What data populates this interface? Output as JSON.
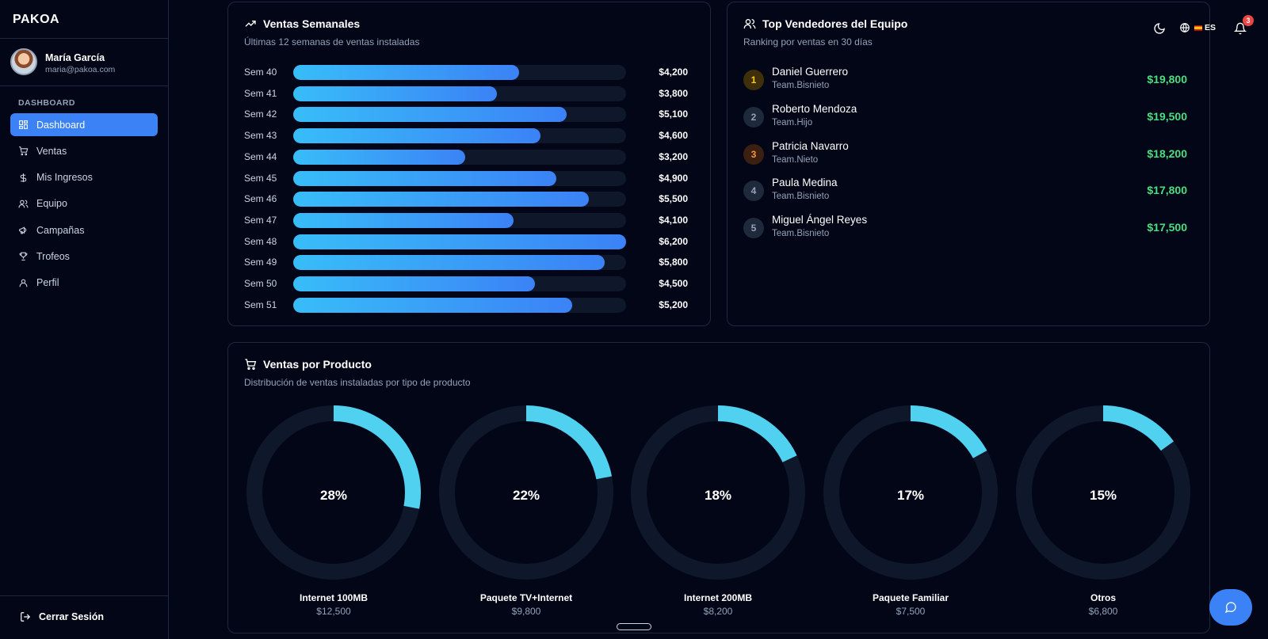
{
  "app": {
    "logo": "PAKOA"
  },
  "user": {
    "name": "María García",
    "email": "maria@pakoa.com"
  },
  "sidebar": {
    "section": "DASHBOARD",
    "items": [
      {
        "label": "Dashboard",
        "icon": "grid-icon",
        "active": true
      },
      {
        "label": "Ventas",
        "icon": "cart-icon"
      },
      {
        "label": "Mis Ingresos",
        "icon": "dollar-icon"
      },
      {
        "label": "Equipo",
        "icon": "users-icon"
      },
      {
        "label": "Campañas",
        "icon": "megaphone-icon"
      },
      {
        "label": "Trofeos",
        "icon": "trophy-icon"
      },
      {
        "label": "Perfil",
        "icon": "user-icon"
      }
    ],
    "logout": "Cerrar Sesión"
  },
  "header": {
    "language": "ES",
    "notifications": "3"
  },
  "weekly": {
    "title": "Ventas Semanales",
    "subtitle": "Últimas 12 semanas de ventas instaladas",
    "max": 6200,
    "rows": [
      {
        "label": "Sem 40",
        "value": 4200,
        "display": "$4,200"
      },
      {
        "label": "Sem 41",
        "value": 3800,
        "display": "$3,800"
      },
      {
        "label": "Sem 42",
        "value": 5100,
        "display": "$5,100"
      },
      {
        "label": "Sem 43",
        "value": 4600,
        "display": "$4,600"
      },
      {
        "label": "Sem 44",
        "value": 3200,
        "display": "$3,200"
      },
      {
        "label": "Sem 45",
        "value": 4900,
        "display": "$4,900"
      },
      {
        "label": "Sem 46",
        "value": 5500,
        "display": "$5,500"
      },
      {
        "label": "Sem 47",
        "value": 4100,
        "display": "$4,100"
      },
      {
        "label": "Sem 48",
        "value": 6200,
        "display": "$6,200"
      },
      {
        "label": "Sem 49",
        "value": 5800,
        "display": "$5,800"
      },
      {
        "label": "Sem 50",
        "value": 4500,
        "display": "$4,500"
      },
      {
        "label": "Sem 51",
        "value": 5200,
        "display": "$5,200"
      }
    ]
  },
  "sellers": {
    "title": "Top Vendedores del Equipo",
    "subtitle": "Ranking por ventas en 30 días",
    "rows": [
      {
        "rank": "1",
        "name": "Daniel Guerrero",
        "team": "Team.Bisnieto",
        "amount": "$19,800",
        "rank_color": "#facc15",
        "rank_bg": "#3f2f0a"
      },
      {
        "rank": "2",
        "name": "Roberto Mendoza",
        "team": "Team.Hijo",
        "amount": "$19,500",
        "rank_color": "#94a3b8",
        "rank_bg": "#1e293b"
      },
      {
        "rank": "3",
        "name": "Patricia Navarro",
        "team": "Team.Nieto",
        "amount": "$18,200",
        "rank_color": "#fb923c",
        "rank_bg": "#3b1f12"
      },
      {
        "rank": "4",
        "name": "Paula Medina",
        "team": "Team.Bisnieto",
        "amount": "$17,800",
        "rank_color": "#94a3b8",
        "rank_bg": "#1e293b"
      },
      {
        "rank": "5",
        "name": "Miguel Ángel Reyes",
        "team": "Team.Bisnieto",
        "amount": "$17,500",
        "rank_color": "#94a3b8",
        "rank_bg": "#1e293b"
      }
    ]
  },
  "products": {
    "title": "Ventas por Producto",
    "subtitle": "Distribución de ventas instaladas por tipo de producto",
    "items": [
      {
        "pct": 28,
        "pct_label": "28%",
        "name": "Internet 100MB",
        "amount": "$12,500"
      },
      {
        "pct": 22,
        "pct_label": "22%",
        "name": "Paquete TV+Internet",
        "amount": "$9,800"
      },
      {
        "pct": 18,
        "pct_label": "18%",
        "name": "Internet 200MB",
        "amount": "$8,200"
      },
      {
        "pct": 17,
        "pct_label": "17%",
        "name": "Paquete Familiar",
        "amount": "$7,500"
      },
      {
        "pct": 15,
        "pct_label": "15%",
        "name": "Otros",
        "amount": "$6,800"
      }
    ]
  },
  "colors": {
    "accent": "#3b82f6",
    "donut": "#4fd1ef",
    "money": "#4ade80"
  }
}
